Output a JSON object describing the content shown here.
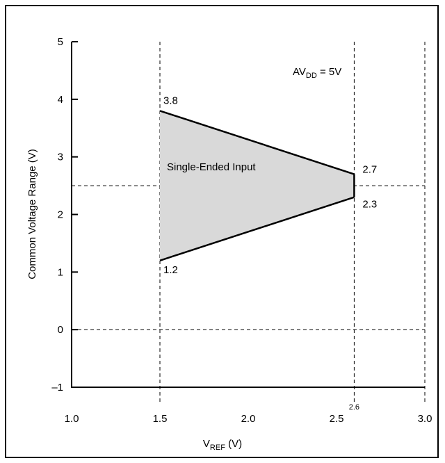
{
  "chart_data": {
    "type": "area",
    "xlabel": "V",
    "xlabel_sub": "REF",
    "xlabel_unit": " (V)",
    "ylabel": "Common Voltage Range (V)",
    "xlim": [
      1.0,
      3.0
    ],
    "ylim": [
      -1,
      5
    ],
    "x_ticks": [
      {
        "value": 1.0,
        "label": "1.0"
      },
      {
        "value": 1.5,
        "label": "1.5"
      },
      {
        "value": 2.0,
        "label": "2.0"
      },
      {
        "value": 2.5,
        "label": "2.5"
      },
      {
        "value": 3.0,
        "label": "3.0"
      }
    ],
    "y_ticks": [
      {
        "value": 5,
        "label": "5"
      },
      {
        "value": 4,
        "label": "4"
      },
      {
        "value": 3,
        "label": "3"
      },
      {
        "value": 2,
        "label": "2"
      },
      {
        "value": 1,
        "label": "1"
      },
      {
        "value": 0,
        "label": "0"
      },
      {
        "value": -1,
        "label": "–1"
      }
    ],
    "region": {
      "name": "Single-Ended Input",
      "fill": "#d9d9d9",
      "upper": [
        {
          "x": 1.5,
          "y": 3.8
        },
        {
          "x": 2.6,
          "y": 2.7
        }
      ],
      "lower": [
        {
          "x": 1.5,
          "y": 1.2
        },
        {
          "x": 2.6,
          "y": 2.3
        }
      ]
    },
    "point_labels": [
      {
        "text": "3.8",
        "x": 1.5,
        "y": 3.8
      },
      {
        "text": "1.2",
        "x": 1.5,
        "y": 1.2
      },
      {
        "text": "2.7",
        "x": 2.6,
        "y": 2.7
      },
      {
        "text": "2.3",
        "x": 2.6,
        "y": 2.3
      }
    ],
    "dashed_vertical": [
      1.5,
      2.6,
      3.0
    ],
    "dashed_horizontal": [
      2.5,
      0
    ],
    "extra_x_label": {
      "value": 2.6,
      "label": "2.6"
    },
    "condition": {
      "prefix": "AV",
      "sub": "DD",
      "suffix": " = 5V"
    }
  }
}
